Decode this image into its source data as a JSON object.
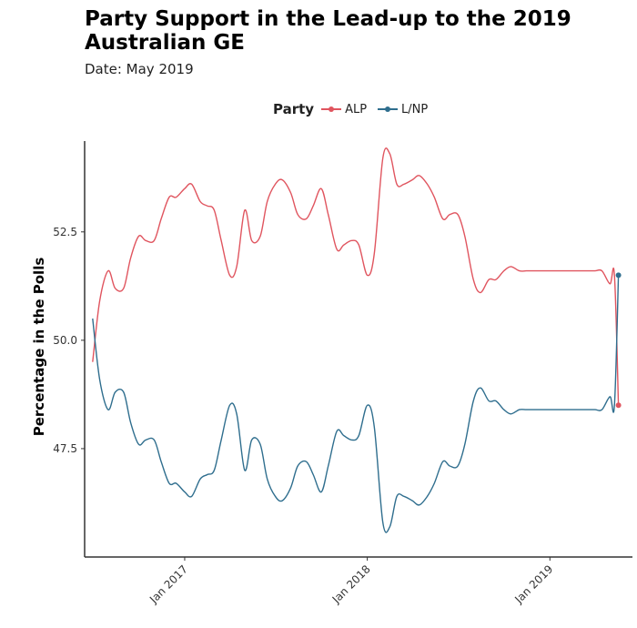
{
  "title": "Party Support in the Lead-up to the 2019 Australian GE",
  "subtitle": "Date: May 2019",
  "legend": {
    "title": "Party",
    "items": [
      {
        "label": "ALP",
        "color": "#e0555f"
      },
      {
        "label": "L/NP",
        "color": "#2f6e8e"
      }
    ],
    "position": "top"
  },
  "chart_data": {
    "type": "line",
    "title": "Party Support in the Lead-up to the 2019 Australian GE",
    "subtitle": "Date: May 2019",
    "xlabel": "",
    "ylabel": "Percentage in the Polls",
    "x_ticks": [
      "Jan 2017",
      "Jan 2018",
      "Jan 2019"
    ],
    "y_ticks": [
      "47.5",
      "50.0",
      "52.5"
    ],
    "ylim": [
      45.0,
      54.7
    ],
    "xlim": [
      "2016-06-15",
      "2019-06-15"
    ],
    "grid": false,
    "x": [
      "2016-07-01",
      "2016-07-15",
      "2016-08-01",
      "2016-08-15",
      "2016-09-01",
      "2016-09-15",
      "2016-10-01",
      "2016-10-15",
      "2016-11-01",
      "2016-11-15",
      "2016-12-01",
      "2016-12-15",
      "2017-01-01",
      "2017-01-15",
      "2017-02-01",
      "2017-02-15",
      "2017-03-01",
      "2017-03-15",
      "2017-04-01",
      "2017-04-15",
      "2017-05-01",
      "2017-05-15",
      "2017-06-01",
      "2017-06-15",
      "2017-07-01",
      "2017-07-15",
      "2017-08-01",
      "2017-08-15",
      "2017-09-01",
      "2017-09-15",
      "2017-10-01",
      "2017-10-15",
      "2017-11-01",
      "2017-11-15",
      "2017-12-01",
      "2017-12-15",
      "2018-01-01",
      "2018-01-15",
      "2018-02-01",
      "2018-02-15",
      "2018-03-01",
      "2018-03-15",
      "2018-04-01",
      "2018-04-15",
      "2018-05-01",
      "2018-05-15",
      "2018-06-01",
      "2018-06-15",
      "2018-07-01",
      "2018-07-15",
      "2018-08-01",
      "2018-08-15",
      "2018-09-01",
      "2018-09-15",
      "2018-10-01",
      "2018-10-15",
      "2018-11-01",
      "2018-11-15",
      "2018-12-01",
      "2018-12-15",
      "2019-01-01",
      "2019-01-15",
      "2019-02-01",
      "2019-02-15",
      "2019-03-01",
      "2019-03-15",
      "2019-04-01",
      "2019-04-15",
      "2019-05-01",
      "2019-05-10",
      "2019-05-18"
    ],
    "series": [
      {
        "name": "ALP",
        "color": "#e0555f",
        "marker_last": true,
        "values": [
          49.5,
          50.9,
          51.6,
          51.2,
          51.2,
          51.9,
          52.4,
          52.3,
          52.3,
          52.8,
          53.3,
          53.3,
          53.5,
          53.6,
          53.2,
          53.1,
          53.0,
          52.3,
          51.5,
          51.7,
          53.0,
          52.3,
          52.4,
          53.2,
          53.6,
          53.7,
          53.4,
          52.9,
          52.8,
          53.1,
          53.5,
          52.9,
          52.1,
          52.2,
          52.3,
          52.2,
          51.5,
          52.0,
          54.2,
          54.3,
          53.6,
          53.6,
          53.7,
          53.8,
          53.6,
          53.3,
          52.8,
          52.9,
          52.9,
          52.4,
          51.4,
          51.1,
          51.4,
          51.4,
          51.6,
          51.7,
          51.6,
          51.6,
          51.6,
          51.6,
          51.6,
          51.6,
          51.6,
          51.6,
          51.6,
          51.6,
          51.6,
          51.6,
          51.3,
          51.5,
          48.5
        ]
      },
      {
        "name": "L/NP",
        "color": "#2f6e8e",
        "marker_last": true,
        "values": [
          50.5,
          49.1,
          48.4,
          48.8,
          48.8,
          48.1,
          47.6,
          47.7,
          47.7,
          47.2,
          46.7,
          46.7,
          46.5,
          46.4,
          46.8,
          46.9,
          47.0,
          47.7,
          48.5,
          48.3,
          47.0,
          47.7,
          47.6,
          46.8,
          46.4,
          46.3,
          46.6,
          47.1,
          47.2,
          46.9,
          46.5,
          47.1,
          47.9,
          47.8,
          47.7,
          47.8,
          48.5,
          48.0,
          45.8,
          45.7,
          46.4,
          46.4,
          46.3,
          46.2,
          46.4,
          46.7,
          47.2,
          47.1,
          47.1,
          47.6,
          48.6,
          48.9,
          48.6,
          48.6,
          48.4,
          48.3,
          48.4,
          48.4,
          48.4,
          48.4,
          48.4,
          48.4,
          48.4,
          48.4,
          48.4,
          48.4,
          48.4,
          48.4,
          48.7,
          48.5,
          51.5
        ]
      }
    ]
  }
}
